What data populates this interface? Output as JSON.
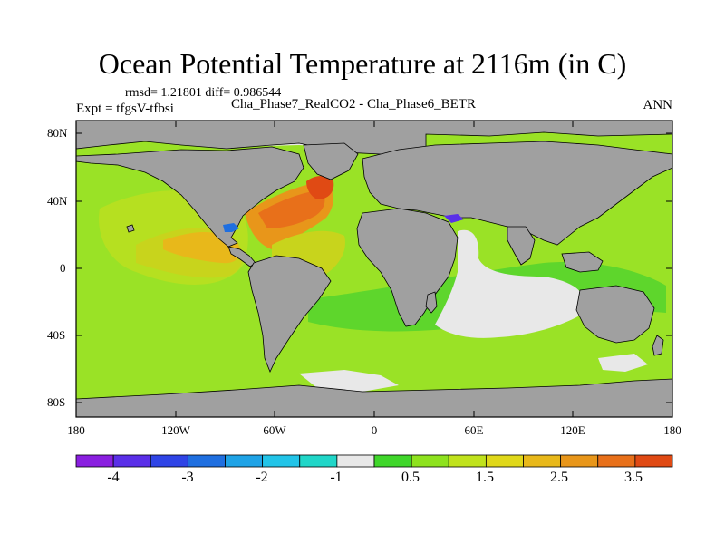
{
  "title": "Ocean Potential Temperature at 2116m (in C)",
  "stats": "rmsd= 1.21801  diff= 0.986544",
  "experiment": "Expt = tfgsV-tfbsi",
  "comparison": "Cha_Phase7_RealCO2 - Cha_Phase6_BETR",
  "season": "ANN",
  "lat_ticks": [
    "80N",
    "40N",
    "0",
    "40S",
    "80S"
  ],
  "lon_ticks": [
    "180",
    "120W",
    "60W",
    "0",
    "60E",
    "120E",
    "180"
  ],
  "colorbar": {
    "colors": [
      "#8a1fe0",
      "#5a2fe8",
      "#2f44e6",
      "#1f6fe0",
      "#1fa3e6",
      "#22c4e8",
      "#20d6c8",
      "#e8e8e8",
      "#3fd62a",
      "#8ee21e",
      "#c0e21c",
      "#e0d81a",
      "#e8b81a",
      "#e8961a",
      "#e8701a",
      "#e04a14"
    ],
    "labels": [
      "-4",
      "-3",
      "-2",
      "-1",
      "0.5",
      "1.5",
      "2.5",
      "3.5"
    ]
  },
  "colors": {
    "land": "#a0a0a0",
    "ocean_base": "#9ae226",
    "pacific_mid": "#b6e020",
    "tropical": "#c8d41c",
    "warm1": "#e8b81a",
    "warm2": "#e8961a",
    "warm3": "#e8701a",
    "hot": "#e04a14",
    "near_zero": "#e8e8e8",
    "green": "#5ed62c"
  }
}
